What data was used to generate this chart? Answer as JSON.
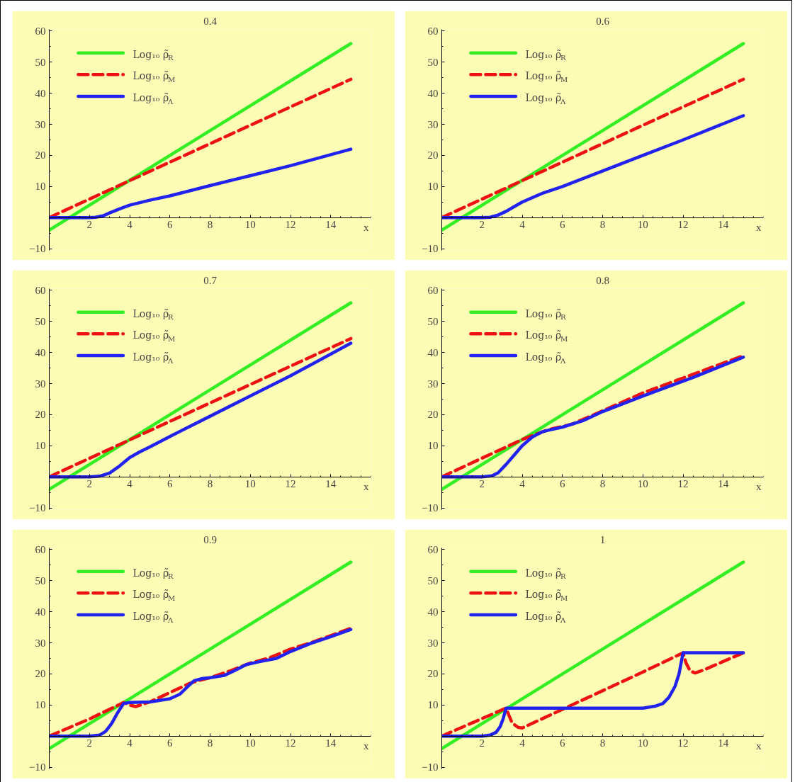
{
  "chart_data": [
    {
      "type": "line",
      "title": "0.4",
      "xlabel": "x",
      "xlim": [
        0,
        16
      ],
      "ylim": [
        -10,
        60
      ],
      "xticks": [
        2,
        4,
        6,
        8,
        10,
        12,
        14
      ],
      "yticks": [
        -10,
        10,
        20,
        30,
        40,
        50,
        60
      ],
      "grid": false,
      "legend": "top left",
      "series": [
        {
          "name": "Log₁₀ ρ̃$_{R}$",
          "color": "#33ee22",
          "line_style": "solid",
          "x": [
            0,
            7.5,
            15
          ],
          "values": [
            -4,
            26,
            56
          ]
        },
        {
          "name": "Log₁₀ ρ̃$_{M}$",
          "color": "#ee1111",
          "line_style": "dashed",
          "x": [
            0,
            7.5,
            15
          ],
          "values": [
            0,
            22.3,
            44.5
          ]
        },
        {
          "name": "Log₁₀ ρ̃$_{Λ}$",
          "color": "#2222ee",
          "line_style": "solid",
          "x": [
            0,
            1,
            2,
            2.3,
            2.7,
            3,
            3.5,
            4,
            5,
            6,
            8,
            10,
            12,
            15
          ],
          "values": [
            0,
            0,
            0,
            0.1,
            0.6,
            1.5,
            2.8,
            4,
            5.6,
            7,
            10.3,
            13.5,
            16.7,
            22
          ]
        }
      ]
    },
    {
      "type": "line",
      "title": "0.6",
      "xlabel": "x",
      "xlim": [
        0,
        16
      ],
      "ylim": [
        -10,
        60
      ],
      "xticks": [
        2,
        4,
        6,
        8,
        10,
        12,
        14
      ],
      "yticks": [
        -10,
        10,
        20,
        30,
        40,
        50,
        60
      ],
      "grid": false,
      "legend": "top left",
      "series": [
        {
          "name": "Log₁₀ ρ̃$_{R}$",
          "color": "#33ee22",
          "line_style": "solid",
          "x": [
            0,
            7.5,
            15
          ],
          "values": [
            -4,
            26,
            56
          ]
        },
        {
          "name": "Log₁₀ ρ̃$_{M}$",
          "color": "#ee1111",
          "line_style": "dashed",
          "x": [
            0,
            7.5,
            15
          ],
          "values": [
            0,
            22.3,
            44.5
          ]
        },
        {
          "name": "Log₁₀ ρ̃$_{Λ}$",
          "color": "#2222ee",
          "line_style": "solid",
          "x": [
            0,
            1,
            2,
            2.4,
            2.8,
            3.2,
            3.6,
            4,
            5,
            6,
            8,
            10,
            12,
            15
          ],
          "values": [
            0,
            0,
            0,
            0.1,
            0.8,
            2,
            3.5,
            5,
            7.8,
            10,
            15,
            20,
            25,
            32.8
          ]
        }
      ]
    },
    {
      "type": "line",
      "title": "0.7",
      "xlabel": "x",
      "xlim": [
        0,
        16
      ],
      "ylim": [
        -10,
        60
      ],
      "xticks": [
        2,
        4,
        6,
        8,
        10,
        12,
        14
      ],
      "yticks": [
        -10,
        10,
        20,
        30,
        40,
        50,
        60
      ],
      "grid": false,
      "legend": "top left",
      "series": [
        {
          "name": "Log₁₀ ρ̃$_{R}$",
          "color": "#33ee22",
          "line_style": "solid",
          "x": [
            0,
            7.5,
            15
          ],
          "values": [
            -4,
            26,
            56
          ]
        },
        {
          "name": "Log₁₀ ρ̃$_{M}$",
          "color": "#ee1111",
          "line_style": "dashed",
          "x": [
            0,
            7.5,
            15
          ],
          "values": [
            0,
            22.3,
            44.5
          ]
        },
        {
          "name": "Log₁₀ ρ̃$_{Λ}$",
          "color": "#2222ee",
          "line_style": "solid",
          "x": [
            0,
            1,
            2,
            2.5,
            3,
            3.5,
            4,
            4.5,
            5,
            6,
            8,
            10,
            12,
            15
          ],
          "values": [
            0,
            0,
            0,
            0.2,
            1.2,
            3.5,
            6.2,
            8,
            9.6,
            13,
            19.5,
            26,
            32.5,
            43
          ]
        }
      ]
    },
    {
      "type": "line",
      "title": "0.8",
      "xlabel": "x",
      "xlim": [
        0,
        16
      ],
      "ylim": [
        -10,
        60
      ],
      "xticks": [
        2,
        4,
        6,
        8,
        10,
        12,
        14
      ],
      "yticks": [
        -10,
        10,
        20,
        30,
        40,
        50,
        60
      ],
      "grid": false,
      "legend": "top left",
      "series": [
        {
          "name": "Log₁₀ ρ̃$_{R}$",
          "color": "#33ee22",
          "line_style": "solid",
          "x": [
            0,
            7.5,
            15
          ],
          "values": [
            -4,
            26,
            56
          ]
        },
        {
          "name": "Log₁₀ ρ̃$_{M}$",
          "color": "#ee1111",
          "line_style": "dashed",
          "x": [
            0,
            2,
            4,
            5,
            5.5,
            6,
            6.5,
            7.5,
            10,
            12.5,
            15
          ],
          "values": [
            0,
            6,
            12,
            14.5,
            15.5,
            16.2,
            17,
            19.8,
            27,
            33,
            39
          ]
        },
        {
          "name": "Log₁₀ ρ̃$_{Λ}$",
          "color": "#2222ee",
          "line_style": "solid",
          "x": [
            0,
            1,
            2,
            2.5,
            2.8,
            3.2,
            3.6,
            4,
            4.5,
            5,
            5.3,
            6,
            7,
            8,
            10,
            12.5,
            15
          ],
          "values": [
            0,
            0,
            0,
            0.3,
            1.3,
            4,
            7,
            10,
            12.8,
            14.5,
            15,
            16,
            18,
            21,
            26,
            32,
            38.5
          ]
        }
      ]
    },
    {
      "type": "line",
      "title": "0.9",
      "xlabel": "x",
      "xlim": [
        0,
        16
      ],
      "ylim": [
        -10,
        60
      ],
      "xticks": [
        2,
        4,
        6,
        8,
        10,
        12,
        14
      ],
      "yticks": [
        -10,
        10,
        20,
        30,
        40,
        50,
        60
      ],
      "grid": false,
      "legend": "top left",
      "series": [
        {
          "name": "Log₁₀ ρ̃$_{R}$",
          "color": "#33ee22",
          "line_style": "solid",
          "x": [
            0,
            7.5,
            15
          ],
          "values": [
            -4,
            26,
            56
          ]
        },
        {
          "name": "Log₁₀ ρ̃$_{M}$",
          "color": "#ee1111",
          "line_style": "dashed",
          "x": [
            0,
            2,
            3.7,
            4,
            4.3,
            5,
            6,
            7,
            7.5,
            8,
            9,
            10,
            11,
            12,
            13,
            15
          ],
          "values": [
            0,
            5.5,
            10.8,
            10,
            9.5,
            11,
            14,
            17,
            18,
            18.8,
            21,
            23.5,
            25.3,
            28,
            30,
            34.7
          ]
        },
        {
          "name": "Log₁₀ ρ̃$_{Λ}$",
          "color": "#2222ee",
          "line_style": "solid",
          "x": [
            0,
            1,
            2,
            2.5,
            2.8,
            3.1,
            3.4,
            3.7,
            4,
            5,
            6,
            6.5,
            6.9,
            7.2,
            7.6,
            8,
            8.7,
            9.2,
            9.8,
            10.5,
            11.3,
            12,
            13,
            14,
            15
          ],
          "values": [
            0,
            0,
            0,
            0.3,
            1.5,
            4,
            7.5,
            10.5,
            10.8,
            11,
            12,
            13.5,
            16,
            17.8,
            18.5,
            18.8,
            19.5,
            21,
            23,
            24,
            25,
            27.2,
            29.8,
            32,
            34.3
          ]
        }
      ]
    },
    {
      "type": "line",
      "title": "1",
      "xlabel": "x",
      "xlim": [
        0,
        16
      ],
      "ylim": [
        -10,
        60
      ],
      "xticks": [
        2,
        4,
        6,
        8,
        10,
        12,
        14
      ],
      "yticks": [
        -10,
        10,
        20,
        30,
        40,
        50,
        60
      ],
      "grid": false,
      "legend": "top left",
      "series": [
        {
          "name": "Log₁₀ ρ̃$_{R}$",
          "color": "#33ee22",
          "line_style": "solid",
          "x": [
            0,
            7.5,
            15
          ],
          "values": [
            -4,
            26,
            56
          ]
        },
        {
          "name": "Log₁₀ ρ̃$_{M}$",
          "color": "#ee1111",
          "line_style": "dashed",
          "x": [
            0,
            3.2,
            3.35,
            3.5,
            3.8,
            4,
            6,
            8,
            10,
            12,
            12.15,
            12.35,
            12.6,
            13,
            15
          ],
          "values": [
            0,
            9,
            6.5,
            4.2,
            2.8,
            2.6,
            8.6,
            14.6,
            20.6,
            26.8,
            23.5,
            21,
            20.3,
            21.2,
            26.8
          ]
        },
        {
          "name": "Log₁₀ ρ̃$_{Λ}$",
          "color": "#2222ee",
          "line_style": "solid",
          "x": [
            0,
            1,
            2,
            2.4,
            2.7,
            2.9,
            3.05,
            3.2,
            4,
            6,
            8,
            10,
            10.6,
            11,
            11.3,
            11.6,
            11.8,
            12,
            13,
            15
          ],
          "values": [
            0,
            0,
            0,
            0.3,
            1.2,
            3,
            5.5,
            9,
            9,
            9,
            9,
            9,
            9.6,
            10.5,
            12.5,
            16,
            20,
            26.8,
            26.8,
            26.8
          ]
        }
      ]
    }
  ]
}
